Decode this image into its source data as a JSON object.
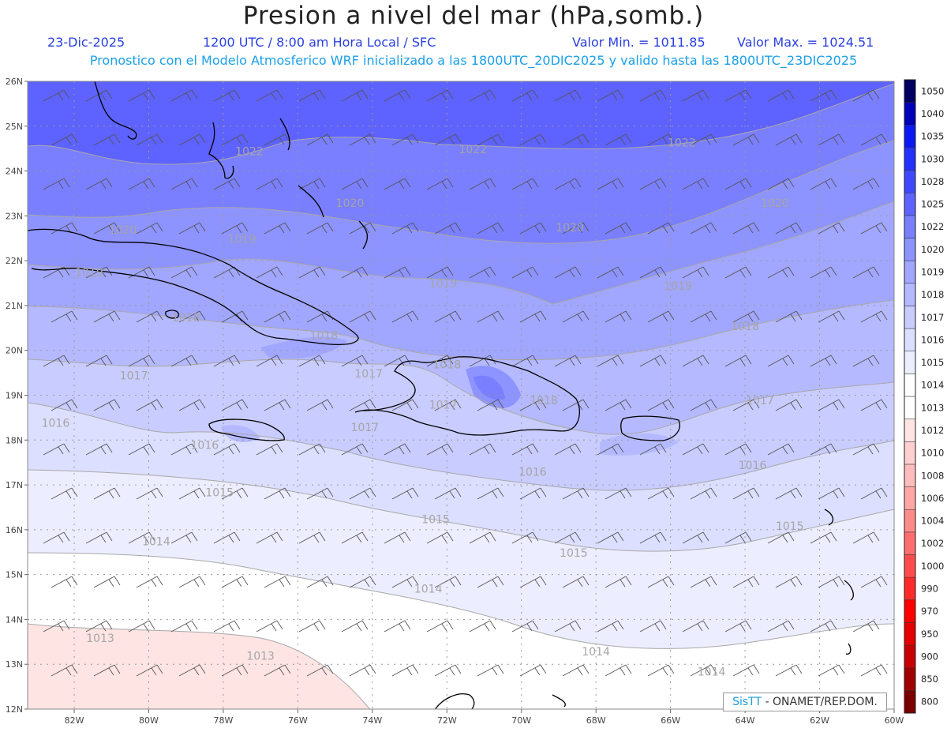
{
  "header": {
    "title": "Presion a nivel del mar (hPa,somb.)",
    "date": "23-Dic-2025",
    "time": "1200 UTC / 8:00 am Hora Local / SFC",
    "min_label": "Valor Min. = 1011.85",
    "max_label": "Valor Max. = 1024.51",
    "subtitle": "Pronostico con el Modelo Atmosferico WRF inicializado a las 1800UTC_20DIC2025 y valido hasta las  1800UTC_23DIC2025"
  },
  "map": {
    "lon_labels": [
      "82W",
      "80W",
      "78W",
      "76W",
      "74W",
      "72W",
      "70W",
      "68W",
      "66W",
      "64W",
      "62W",
      "60W"
    ],
    "lat_labels": [
      "12N",
      "13N",
      "14N",
      "15N",
      "16N",
      "17N",
      "18N",
      "19N",
      "20N",
      "21N",
      "22N",
      "23N",
      "24N",
      "25N",
      "26N"
    ],
    "contour_labels": [
      {
        "text": "1022",
        "lon": -77.3,
        "lat": 24.35
      },
      {
        "text": "1022",
        "lon": -71.3,
        "lat": 24.4
      },
      {
        "text": "1022",
        "lon": -65.7,
        "lat": 24.55
      },
      {
        "text": "1020",
        "lon": -80.7,
        "lat": 22.6
      },
      {
        "text": "1020",
        "lon": -74.6,
        "lat": 23.2
      },
      {
        "text": "1020",
        "lon": -68.7,
        "lat": 22.65
      },
      {
        "text": "1020",
        "lon": -63.2,
        "lat": 23.2
      },
      {
        "text": "1019",
        "lon": -81.6,
        "lat": 21.65
      },
      {
        "text": "1019",
        "lon": -77.5,
        "lat": 22.4
      },
      {
        "text": "1019",
        "lon": -72.1,
        "lat": 21.4
      },
      {
        "text": "1019",
        "lon": -65.8,
        "lat": 21.35
      },
      {
        "text": "1018",
        "lon": -79.0,
        "lat": 20.65
      },
      {
        "text": "1018",
        "lon": -75.3,
        "lat": 20.25
      },
      {
        "text": "1018",
        "lon": -72.0,
        "lat": 19.6
      },
      {
        "text": "1018",
        "lon": -69.4,
        "lat": 18.8
      },
      {
        "text": "1018",
        "lon": -64.0,
        "lat": 20.45
      },
      {
        "text": "1017",
        "lon": -80.4,
        "lat": 19.35
      },
      {
        "text": "1017",
        "lon": -74.1,
        "lat": 19.4
      },
      {
        "text": "1017",
        "lon": -72.1,
        "lat": 18.7
      },
      {
        "text": "1017",
        "lon": -74.2,
        "lat": 18.2
      },
      {
        "text": "1017",
        "lon": -63.6,
        "lat": 18.8
      },
      {
        "text": "1016",
        "lon": -82.5,
        "lat": 18.3
      },
      {
        "text": "1016",
        "lon": -78.5,
        "lat": 17.8
      },
      {
        "text": "1016",
        "lon": -69.7,
        "lat": 17.2
      },
      {
        "text": "1016",
        "lon": -63.8,
        "lat": 17.35
      },
      {
        "text": "1015",
        "lon": -78.1,
        "lat": 16.75
      },
      {
        "text": "1015",
        "lon": -72.3,
        "lat": 16.15
      },
      {
        "text": "1015",
        "lon": -68.6,
        "lat": 15.4
      },
      {
        "text": "1015",
        "lon": -62.8,
        "lat": 16.0
      },
      {
        "text": "1014",
        "lon": -79.8,
        "lat": 15.65
      },
      {
        "text": "1014",
        "lon": -72.5,
        "lat": 14.6
      },
      {
        "text": "1014",
        "lon": -68.0,
        "lat": 13.2
      },
      {
        "text": "1014",
        "lon": -64.9,
        "lat": 12.75
      },
      {
        "text": "1013",
        "lon": -81.3,
        "lat": 13.5
      },
      {
        "text": "1013",
        "lon": -77.0,
        "lat": 13.1
      }
    ]
  },
  "colorbar": {
    "levels": [
      "800",
      "850",
      "900",
      "950",
      "970",
      "990",
      "1000",
      "1002",
      "1004",
      "1006",
      "1008",
      "1010",
      "1012",
      "1013",
      "1014",
      "1015",
      "1016",
      "1017",
      "1018",
      "1019",
      "1020",
      "1022",
      "1025",
      "1028",
      "1030",
      "1035",
      "1040",
      "1050"
    ],
    "colors": [
      "#7a0000",
      "#a00000",
      "#c80000",
      "#e60000",
      "#ff0000",
      "#ff2a2a",
      "#ff4c4c",
      "#ff6e6e",
      "#ff8a8a",
      "#ffa6a6",
      "#ffbcbc",
      "#ffd0d0",
      "#ffe4e4",
      "#ffffff",
      "#ffffff",
      "#eceeff",
      "#dcdfff",
      "#c9ccff",
      "#b5b9ff",
      "#a1a6ff",
      "#8d93ff",
      "#797fff",
      "#5e62ff",
      "#4048ff",
      "#2430ff",
      "#0a18f4",
      "#0000b8",
      "#000060"
    ]
  },
  "credit": {
    "sis": "SisTT",
    "org": "- ONAMET/REP.DOM."
  }
}
